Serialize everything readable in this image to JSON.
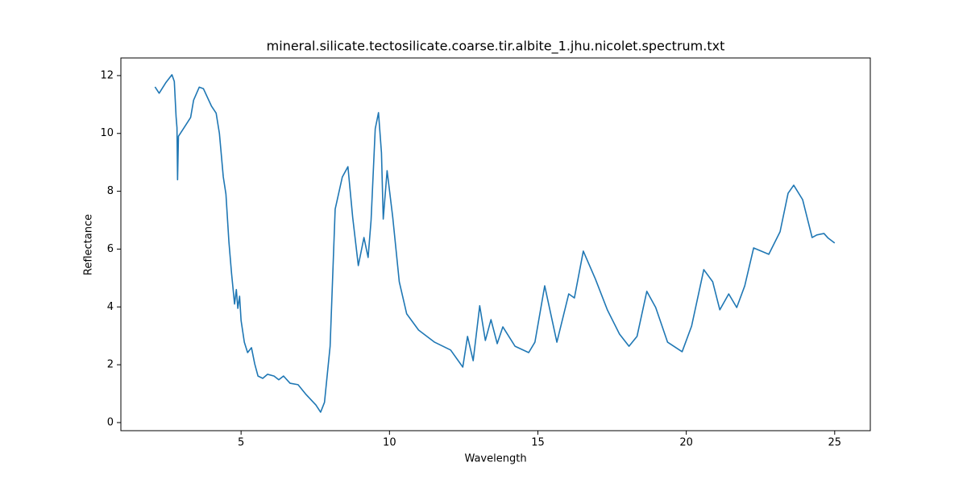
{
  "chart_data": {
    "type": "line",
    "title": "mineral.silicate.tectosilicate.coarse.tir.albite_1.jhu.nicolet.spectrum.txt",
    "x_label": "Wavelength",
    "y_label": "Reflectance",
    "xlim": [
      0.95,
      26.2
    ],
    "ylim": [
      -0.28,
      12.61
    ],
    "xticks": [
      5,
      10,
      15,
      20,
      25
    ],
    "yticks": [
      0,
      2,
      4,
      6,
      8,
      10,
      12
    ],
    "grid": false,
    "series": [
      {
        "color": "#1f77b4",
        "x": [
          2.1,
          2.24,
          2.46,
          2.67,
          2.75,
          2.81,
          2.84,
          2.86,
          2.89,
          3.08,
          3.3,
          3.4,
          3.59,
          3.73,
          4.0,
          4.16,
          4.27,
          4.4,
          4.49,
          4.59,
          4.68,
          4.78,
          4.84,
          4.89,
          4.95,
          5.0,
          5.11,
          5.22,
          5.35,
          5.46,
          5.57,
          5.73,
          5.89,
          6.11,
          6.27,
          6.43,
          6.65,
          6.92,
          7.19,
          7.52,
          7.68,
          7.81,
          8.0,
          8.17,
          8.41,
          8.6,
          8.76,
          8.95,
          9.14,
          9.28,
          9.38,
          9.52,
          9.63,
          9.73,
          9.79,
          9.92,
          10.11,
          10.33,
          10.58,
          10.98,
          11.52,
          12.06,
          12.47,
          12.63,
          12.82,
          13.04,
          13.23,
          13.42,
          13.63,
          13.82,
          14.23,
          14.69,
          14.9,
          15.23,
          15.64,
          16.04,
          16.23,
          16.53,
          16.94,
          17.34,
          17.75,
          18.07,
          18.34,
          18.67,
          18.97,
          19.37,
          19.86,
          20.18,
          20.59,
          20.89,
          21.13,
          21.43,
          21.7,
          21.97,
          22.27,
          22.78,
          23.16,
          23.43,
          23.62,
          23.92,
          24.24,
          24.4,
          24.64,
          24.78,
          25.0
        ],
        "values": [
          11.61,
          11.39,
          11.75,
          12.03,
          11.8,
          10.58,
          10.2,
          8.4,
          9.9,
          10.2,
          10.55,
          11.15,
          11.6,
          11.55,
          10.95,
          10.7,
          10.0,
          8.5,
          7.9,
          6.25,
          5.15,
          4.1,
          4.6,
          3.95,
          4.37,
          3.53,
          2.78,
          2.42,
          2.59,
          2.03,
          1.61,
          1.53,
          1.67,
          1.61,
          1.48,
          1.61,
          1.36,
          1.31,
          0.97,
          0.61,
          0.36,
          0.7,
          2.64,
          7.38,
          8.49,
          8.85,
          7.1,
          5.43,
          6.4,
          5.71,
          7.0,
          10.16,
          10.72,
          9.33,
          7.04,
          8.71,
          7.1,
          4.87,
          3.76,
          3.2,
          2.78,
          2.51,
          1.92,
          2.98,
          2.14,
          4.04,
          2.84,
          3.56,
          2.73,
          3.31,
          2.64,
          2.42,
          2.78,
          4.73,
          2.78,
          4.45,
          4.31,
          5.93,
          4.96,
          3.9,
          3.06,
          2.64,
          2.98,
          4.54,
          3.98,
          2.78,
          2.45,
          3.34,
          5.29,
          4.87,
          3.9,
          4.45,
          3.98,
          4.73,
          6.04,
          5.82,
          6.6,
          7.93,
          8.21,
          7.71,
          6.4,
          6.49,
          6.54,
          6.38,
          6.21
        ]
      }
    ]
  }
}
